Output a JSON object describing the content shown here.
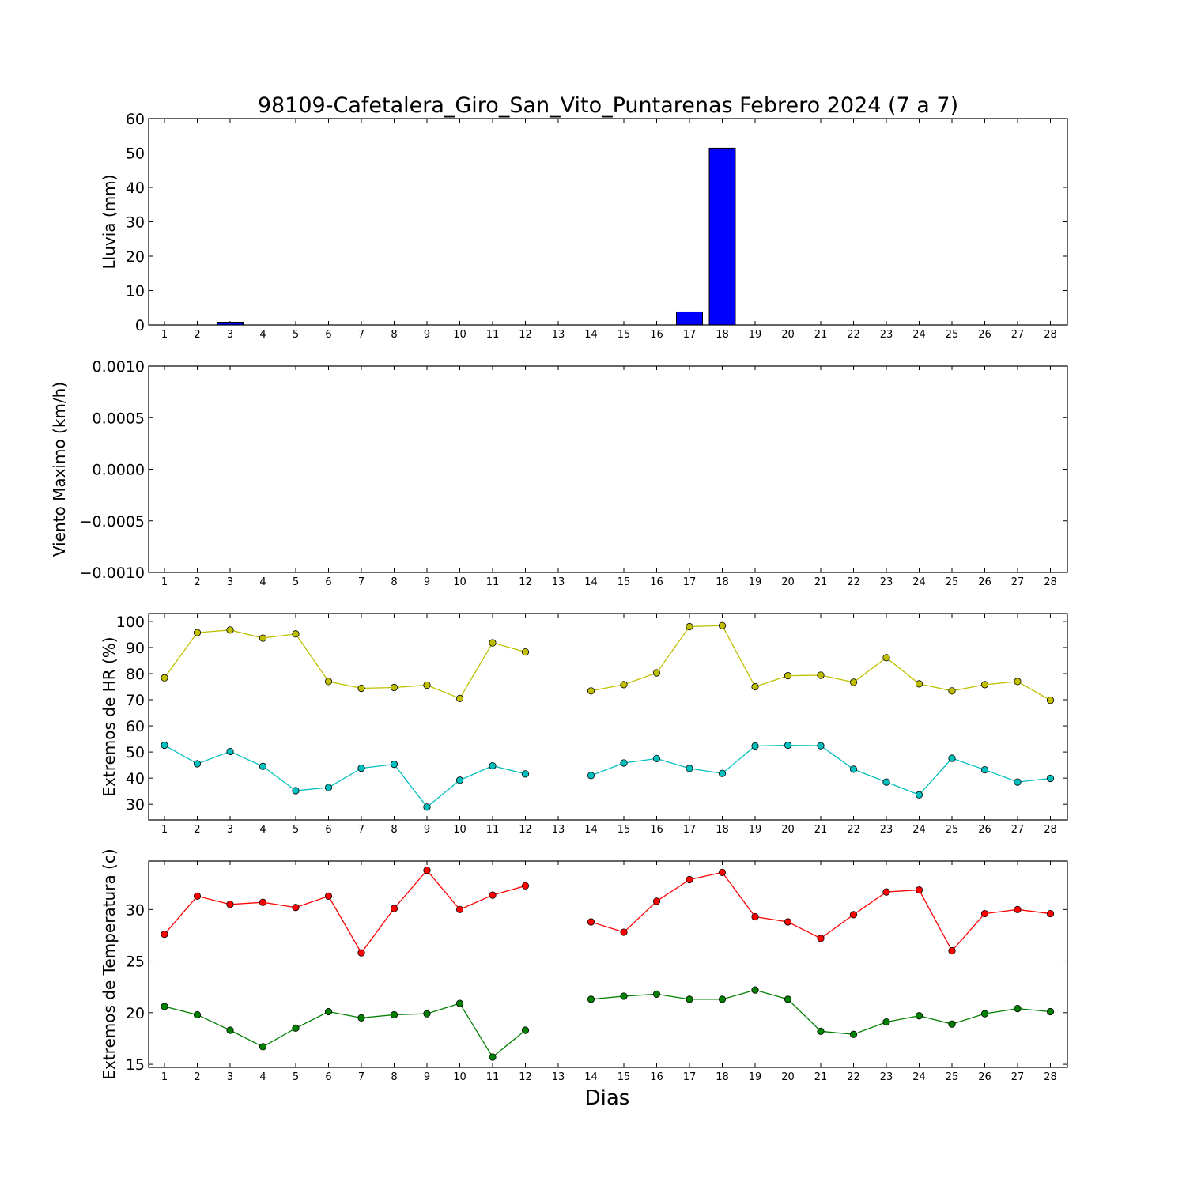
{
  "chart_data": [
    {
      "type": "bar",
      "title": "98109-Cafetalera_Giro_San_Vito_Puntarenas Febrero 2024  (7 a 7)",
      "ylabel": "Lluvia (mm)",
      "xlabel": "",
      "ylim": [
        0,
        60
      ],
      "yticks": [
        "0",
        "10",
        "20",
        "30",
        "40",
        "50",
        "60"
      ],
      "categories": [
        1,
        2,
        3,
        4,
        5,
        6,
        7,
        8,
        9,
        10,
        11,
        12,
        13,
        14,
        15,
        16,
        17,
        18,
        19,
        20,
        21,
        22,
        23,
        24,
        25,
        26,
        27,
        28
      ],
      "series": [
        {
          "color": "#0000ff",
          "values": [
            0,
            0,
            0.8,
            0,
            0,
            0,
            0,
            0,
            0,
            0,
            0,
            0,
            null,
            0,
            0,
            0,
            3.8,
            51.4,
            0,
            0,
            0,
            0,
            0,
            0,
            0,
            0,
            0,
            0
          ]
        }
      ],
      "grid": false
    },
    {
      "type": "line",
      "ylabel": "Viento Maximo (km/h)",
      "xlabel": "",
      "ylim": [
        -0.001,
        0.001
      ],
      "yticks": [
        "−0.0010",
        "−0.0005",
        "0.0000",
        "0.0005",
        "0.0010"
      ],
      "categories": [
        1,
        2,
        3,
        4,
        5,
        6,
        7,
        8,
        9,
        10,
        11,
        12,
        13,
        14,
        15,
        16,
        17,
        18,
        19,
        20,
        21,
        22,
        23,
        24,
        25,
        26,
        27,
        28
      ],
      "series": [],
      "grid": false
    },
    {
      "type": "line",
      "ylabel": "Extremos de HR (%)",
      "xlabel": "",
      "ylim": [
        24,
        103
      ],
      "yticks": [
        "30",
        "40",
        "50",
        "60",
        "70",
        "80",
        "90",
        "100"
      ],
      "categories": [
        1,
        2,
        3,
        4,
        5,
        6,
        7,
        8,
        9,
        10,
        11,
        12,
        13,
        14,
        15,
        16,
        17,
        18,
        19,
        20,
        21,
        22,
        23,
        24,
        25,
        26,
        27,
        28
      ],
      "series": [
        {
          "color": "#bfbf00",
          "values": [
            78.4,
            95.7,
            96.7,
            93.6,
            95.2,
            77,
            74.4,
            74.7,
            75.6,
            70.5,
            91.8,
            88.3,
            null,
            73.4,
            75.8,
            80.3,
            98,
            98.4,
            75,
            79.2,
            79.4,
            76.7,
            86.1,
            76.1,
            73.4,
            75.8,
            77,
            69.8
          ]
        },
        {
          "color": "#00bfbf",
          "values": [
            52.6,
            45.5,
            50.2,
            44.5,
            35.2,
            36.4,
            43.8,
            45.3,
            28.9,
            39.2,
            44.7,
            41.6,
            null,
            41,
            45.8,
            47.5,
            43.7,
            41.8,
            52.3,
            52.6,
            52.4,
            43.4,
            38.5,
            33.6,
            47.6,
            43.2,
            38.5,
            39.9
          ]
        }
      ],
      "grid": false
    },
    {
      "type": "line",
      "ylabel": "Extremos de Temperatura (c)",
      "xlabel": "Dias",
      "ylim": [
        14.7,
        34.7
      ],
      "yticks": [
        "15",
        "20",
        "25",
        "30"
      ],
      "categories": [
        1,
        2,
        3,
        4,
        5,
        6,
        7,
        8,
        9,
        10,
        11,
        12,
        13,
        14,
        15,
        16,
        17,
        18,
        19,
        20,
        21,
        22,
        23,
        24,
        25,
        26,
        27,
        28
      ],
      "series": [
        {
          "color": "#ff0000",
          "values": [
            27.6,
            31.3,
            30.5,
            30.7,
            30.2,
            31.3,
            25.8,
            30.1,
            33.8,
            30,
            31.4,
            32.3,
            null,
            28.8,
            27.8,
            30.8,
            32.9,
            33.6,
            29.3,
            28.8,
            27.2,
            29.5,
            31.7,
            31.9,
            26,
            29.6,
            30,
            29.6
          ]
        },
        {
          "color": "#008000",
          "values": [
            20.6,
            19.8,
            18.3,
            16.7,
            18.5,
            20.1,
            19.5,
            19.8,
            19.9,
            20.9,
            15.7,
            18.3,
            null,
            21.3,
            21.6,
            21.8,
            21.3,
            21.3,
            22.2,
            21.3,
            18.2,
            17.9,
            19.1,
            19.7,
            18.9,
            19.9,
            20.4,
            20.1
          ]
        }
      ],
      "grid": false
    }
  ]
}
